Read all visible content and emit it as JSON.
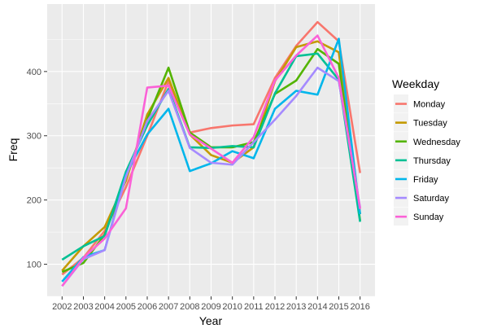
{
  "chart_data": {
    "type": "line",
    "xlabel": "Year",
    "ylabel": "Freq",
    "x": [
      2002,
      2003,
      2004,
      2005,
      2006,
      2007,
      2008,
      2009,
      2010,
      2011,
      2012,
      2013,
      2014,
      2015,
      2016
    ],
    "ylim": [
      50,
      505
    ],
    "yticks": [
      100,
      200,
      300,
      400
    ],
    "grid": true,
    "legend": {
      "title": "Weekday",
      "position": "right"
    },
    "series": [
      {
        "name": "Monday",
        "color": "#F8766D",
        "values": [
          84,
          110,
          152,
          220,
          300,
          385,
          305,
          312,
          316,
          318,
          390,
          440,
          477,
          447,
          242
        ]
      },
      {
        "name": "Tuesday",
        "color": "#C49A00",
        "values": [
          90,
          128,
          158,
          230,
          333,
          390,
          302,
          270,
          258,
          282,
          385,
          438,
          447,
          430,
          178
        ]
      },
      {
        "name": "Wednesday",
        "color": "#53B400",
        "values": [
          88,
          102,
          146,
          236,
          325,
          406,
          305,
          282,
          282,
          290,
          365,
          386,
          435,
          412,
          168
        ]
      },
      {
        "name": "Thursday",
        "color": "#00C094",
        "values": [
          107,
          128,
          144,
          244,
          316,
          373,
          282,
          281,
          284,
          282,
          366,
          424,
          428,
          387,
          166
        ]
      },
      {
        "name": "Friday",
        "color": "#00B6EB",
        "values": [
          73,
          111,
          122,
          240,
          302,
          342,
          245,
          257,
          276,
          265,
          342,
          370,
          364,
          451,
          178
        ]
      },
      {
        "name": "Saturday",
        "color": "#A58AFF",
        "values": [
          66,
          108,
          122,
          236,
          323,
          370,
          281,
          258,
          255,
          290,
          325,
          362,
          406,
          385,
          188
        ]
      },
      {
        "name": "Sunday",
        "color": "#FB61D7",
        "values": [
          66,
          110,
          140,
          187,
          375,
          378,
          302,
          280,
          258,
          298,
          386,
          425,
          456,
          390,
          186
        ]
      }
    ]
  }
}
